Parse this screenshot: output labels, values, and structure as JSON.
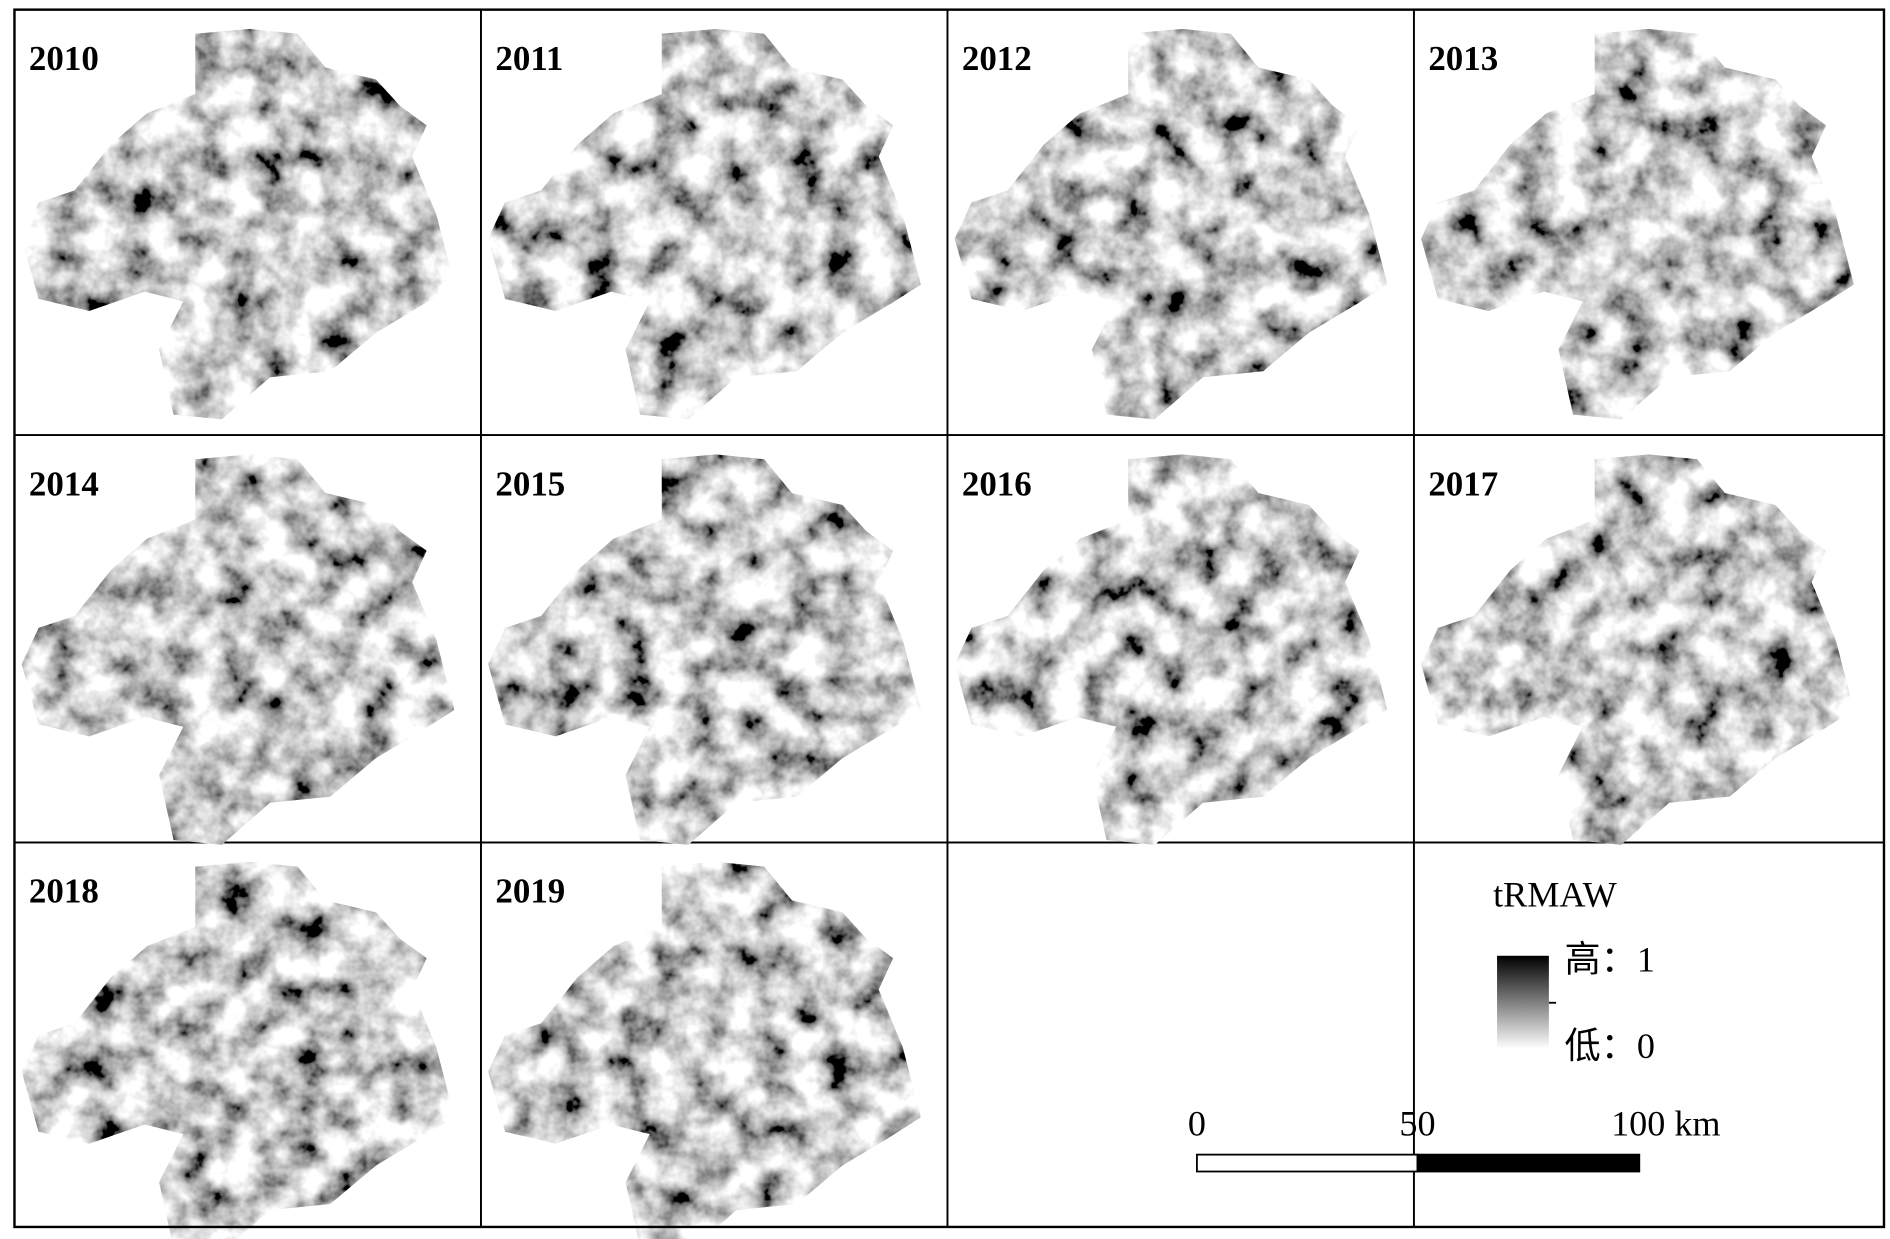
{
  "panels": [
    {
      "year": "2010"
    },
    {
      "year": "2011"
    },
    {
      "year": "2012"
    },
    {
      "year": "2013"
    },
    {
      "year": "2014"
    },
    {
      "year": "2015"
    },
    {
      "year": "2016"
    },
    {
      "year": "2017"
    },
    {
      "year": "2018"
    },
    {
      "year": "2019"
    }
  ],
  "legend": {
    "title": "tRMAW",
    "high": "高：1",
    "low": "低：0"
  },
  "scale_bar": {
    "labels": [
      "0",
      "50",
      "100 km"
    ]
  }
}
